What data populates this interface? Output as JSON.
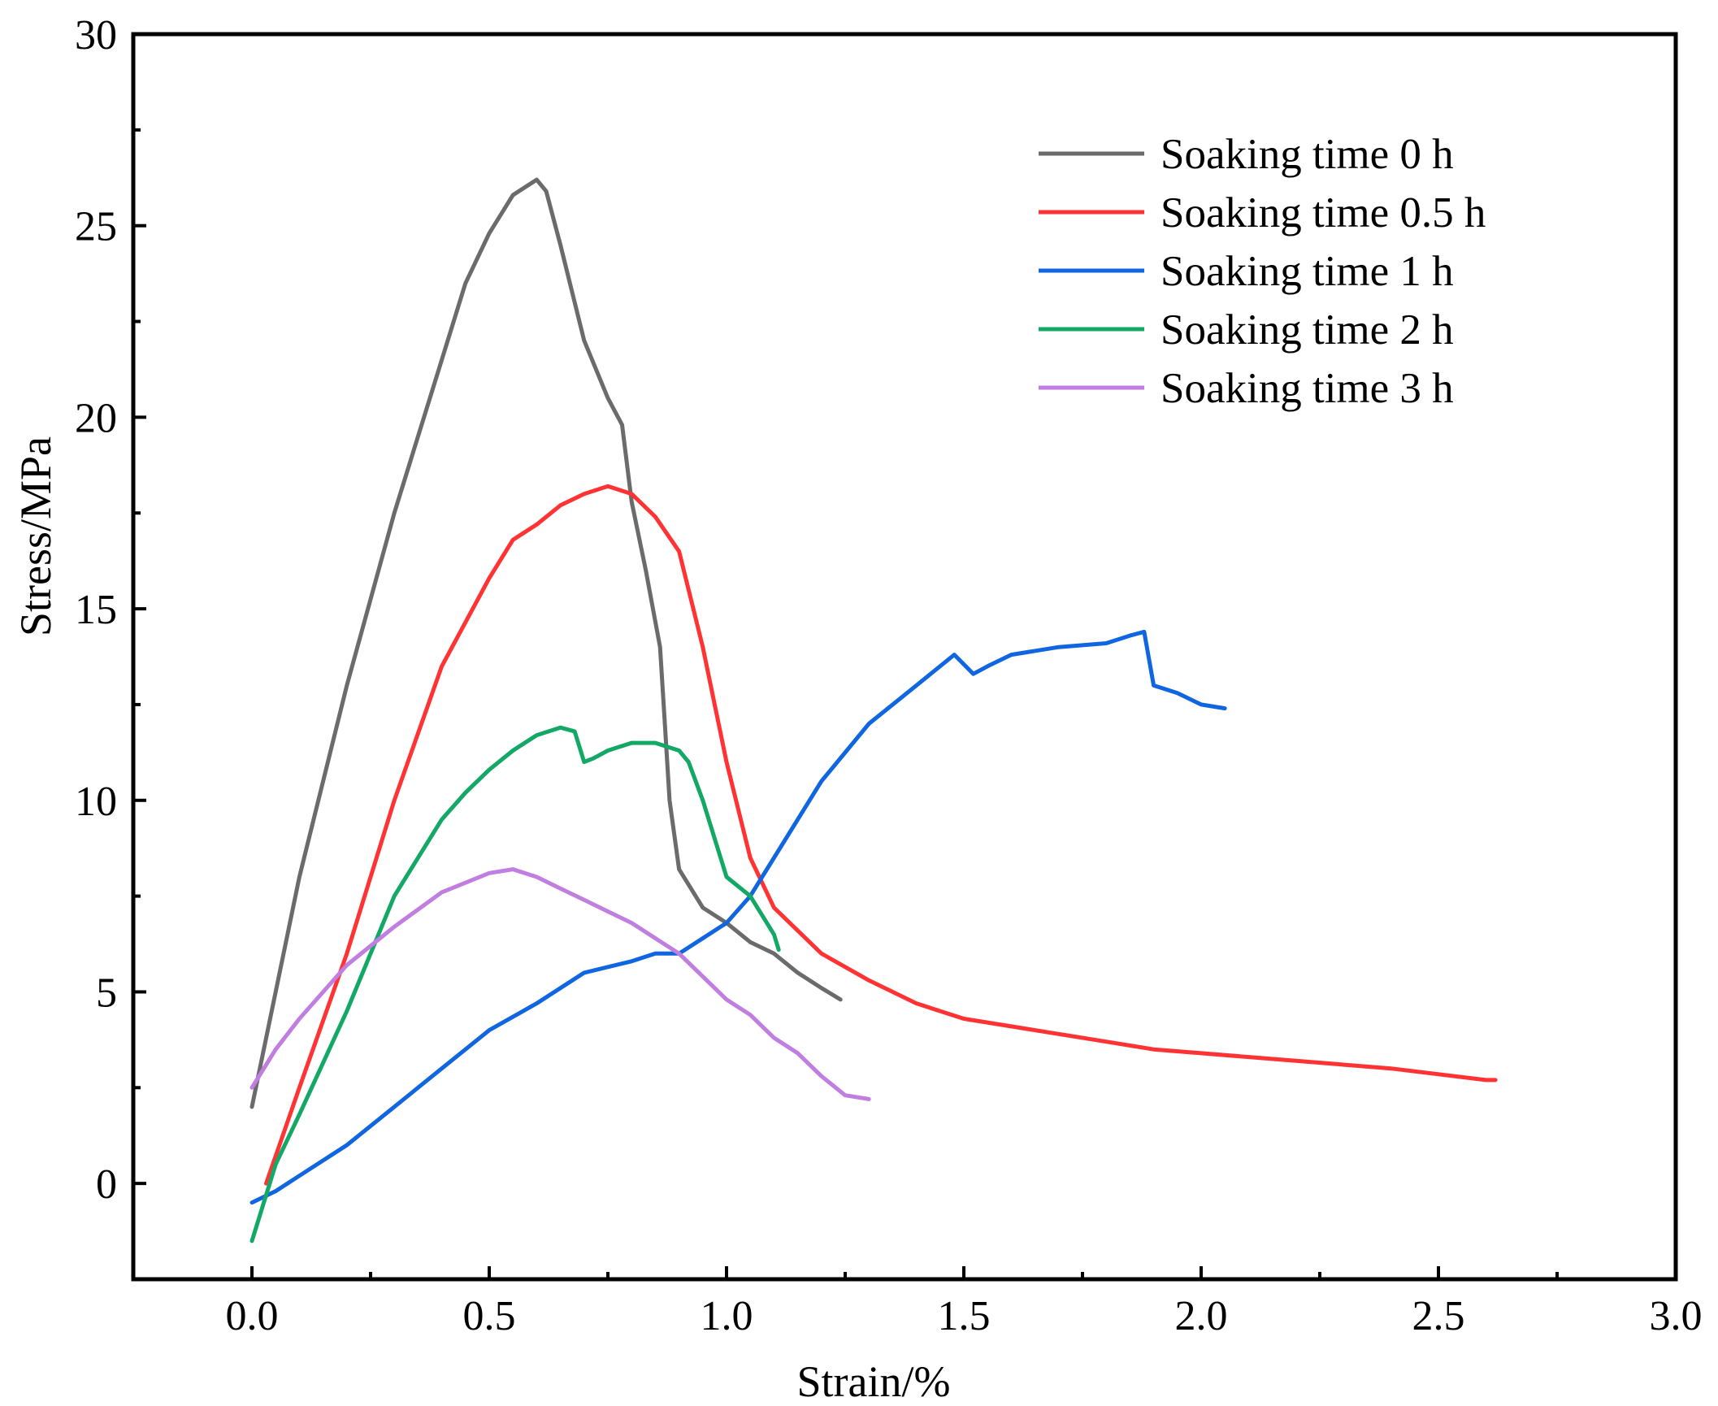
{
  "chart_data": {
    "type": "line",
    "title": "",
    "xlabel": "Strain/%",
    "ylabel": "Stress/MPa",
    "xlim": [
      -0.25,
      3.0
    ],
    "ylim": [
      -2.5,
      30
    ],
    "xticks": [
      0.0,
      0.5,
      1.0,
      1.5,
      2.0,
      2.5,
      3.0
    ],
    "xtick_labels": [
      "0.0",
      "0.5",
      "1.0",
      "1.5",
      "2.0",
      "2.5",
      "3.0"
    ],
    "yticks": [
      0,
      5,
      10,
      15,
      20,
      25,
      30
    ],
    "ytick_labels": [
      "0",
      "5",
      "10",
      "15",
      "20",
      "25",
      "30"
    ],
    "grid": false,
    "legend_position": "top-right",
    "series": [
      {
        "name": "Soaking time 0 h",
        "color": "#6b6b6b",
        "x": [
          0.0,
          0.05,
          0.1,
          0.2,
          0.3,
          0.4,
          0.45,
          0.5,
          0.55,
          0.6,
          0.62,
          0.65,
          0.7,
          0.75,
          0.78,
          0.8,
          0.83,
          0.86,
          0.87,
          0.88,
          0.9,
          0.95,
          1.0,
          1.05,
          1.1,
          1.15,
          1.2,
          1.24
        ],
        "y": [
          2.0,
          5.0,
          8.0,
          13.0,
          17.5,
          21.5,
          23.5,
          24.8,
          25.8,
          26.2,
          25.9,
          24.5,
          22.0,
          20.5,
          19.8,
          17.8,
          16.0,
          14.0,
          12.0,
          10.0,
          8.2,
          7.2,
          6.8,
          6.3,
          6.0,
          5.5,
          5.1,
          4.8
        ]
      },
      {
        "name": "Soaking time 0.5 h",
        "color": "#ff3333",
        "x": [
          0.03,
          0.1,
          0.2,
          0.3,
          0.4,
          0.5,
          0.55,
          0.6,
          0.65,
          0.7,
          0.75,
          0.8,
          0.85,
          0.9,
          0.95,
          1.0,
          1.05,
          1.1,
          1.2,
          1.3,
          1.4,
          1.5,
          1.6,
          1.7,
          1.8,
          1.9,
          2.0,
          2.2,
          2.4,
          2.6,
          2.62
        ],
        "y": [
          0.0,
          2.5,
          6.0,
          10.0,
          13.5,
          15.8,
          16.8,
          17.2,
          17.7,
          18.0,
          18.2,
          18.0,
          17.4,
          16.5,
          14.0,
          11.0,
          8.5,
          7.2,
          6.0,
          5.3,
          4.7,
          4.3,
          4.1,
          3.9,
          3.7,
          3.5,
          3.4,
          3.2,
          3.0,
          2.7,
          2.7
        ]
      },
      {
        "name": "Soaking time 1 h",
        "color": "#0f66e0",
        "x": [
          0.0,
          0.05,
          0.1,
          0.2,
          0.3,
          0.4,
          0.5,
          0.6,
          0.7,
          0.8,
          0.85,
          0.9,
          0.95,
          1.0,
          1.05,
          1.1,
          1.2,
          1.3,
          1.4,
          1.48,
          1.52,
          1.55,
          1.6,
          1.7,
          1.8,
          1.85,
          1.88,
          1.9,
          1.95,
          2.0,
          2.05
        ],
        "y": [
          -0.5,
          -0.2,
          0.2,
          1.0,
          2.0,
          3.0,
          4.0,
          4.7,
          5.5,
          5.8,
          6.0,
          6.0,
          6.4,
          6.8,
          7.5,
          8.5,
          10.5,
          12.0,
          13.0,
          13.8,
          13.3,
          13.5,
          13.8,
          14.0,
          14.1,
          14.3,
          14.4,
          13.0,
          12.8,
          12.5,
          12.4
        ]
      },
      {
        "name": "Soaking time 2 h",
        "color": "#13a866",
        "x": [
          0.0,
          0.05,
          0.1,
          0.2,
          0.3,
          0.4,
          0.45,
          0.5,
          0.55,
          0.6,
          0.65,
          0.68,
          0.7,
          0.72,
          0.75,
          0.8,
          0.85,
          0.9,
          0.92,
          0.95,
          1.0,
          1.05,
          1.1,
          1.11
        ],
        "y": [
          -1.5,
          0.5,
          1.8,
          4.5,
          7.5,
          9.5,
          10.2,
          10.8,
          11.3,
          11.7,
          11.9,
          11.8,
          11.0,
          11.1,
          11.3,
          11.5,
          11.5,
          11.3,
          11.0,
          10.0,
          8.0,
          7.5,
          6.5,
          6.1
        ]
      },
      {
        "name": "Soaking time 3 h",
        "color": "#c07ee0",
        "x": [
          0.0,
          0.05,
          0.1,
          0.15,
          0.2,
          0.3,
          0.4,
          0.5,
          0.55,
          0.6,
          0.65,
          0.7,
          0.75,
          0.8,
          0.85,
          0.9,
          0.95,
          1.0,
          1.05,
          1.1,
          1.15,
          1.2,
          1.25,
          1.3
        ],
        "y": [
          2.5,
          3.5,
          4.3,
          5.0,
          5.7,
          6.7,
          7.6,
          8.1,
          8.2,
          8.0,
          7.7,
          7.4,
          7.1,
          6.8,
          6.4,
          6.0,
          5.4,
          4.8,
          4.4,
          3.8,
          3.4,
          2.8,
          2.3,
          2.2
        ]
      }
    ]
  }
}
